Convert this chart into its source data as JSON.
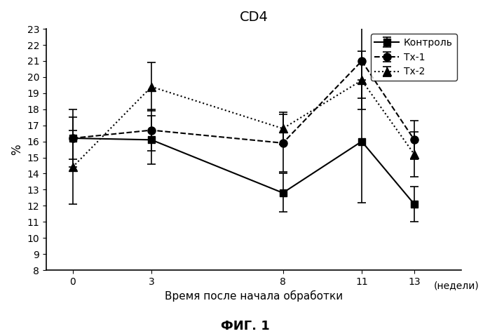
{
  "title": "CD4",
  "xlabel": "Время после начала обработки",
  "ylabel": "%",
  "xlabel_units": "(недели)",
  "caption": "ФИГ. 1",
  "x": [
    0,
    3,
    8,
    11,
    13
  ],
  "kontrol": {
    "y": [
      16.2,
      16.1,
      12.8,
      16.0,
      12.1
    ],
    "yerr": [
      1.8,
      1.5,
      1.2,
      3.8,
      1.1
    ],
    "label": "Контроль",
    "marker": "s",
    "linestyle": "-",
    "color": "#000000"
  },
  "tx1": {
    "y": [
      16.2,
      16.7,
      15.9,
      21.0,
      16.1
    ],
    "yerr": [
      1.3,
      1.3,
      1.8,
      2.3,
      1.2
    ],
    "label": "Тх-1",
    "marker": "o",
    "linestyle": "--",
    "color": "#000000"
  },
  "tx2": {
    "y": [
      14.4,
      19.4,
      16.8,
      19.8,
      15.2
    ],
    "yerr": [
      2.3,
      1.5,
      1.0,
      1.8,
      1.4
    ],
    "label": "Тх-2",
    "marker": "^",
    "linestyle": ":",
    "color": "#000000"
  },
  "ylim": [
    8,
    23
  ],
  "yticks": [
    8,
    9,
    10,
    11,
    12,
    13,
    14,
    15,
    16,
    17,
    18,
    19,
    20,
    21,
    22,
    23
  ],
  "xticks": [
    0,
    3,
    8,
    11,
    13
  ],
  "background_color": "#ffffff"
}
